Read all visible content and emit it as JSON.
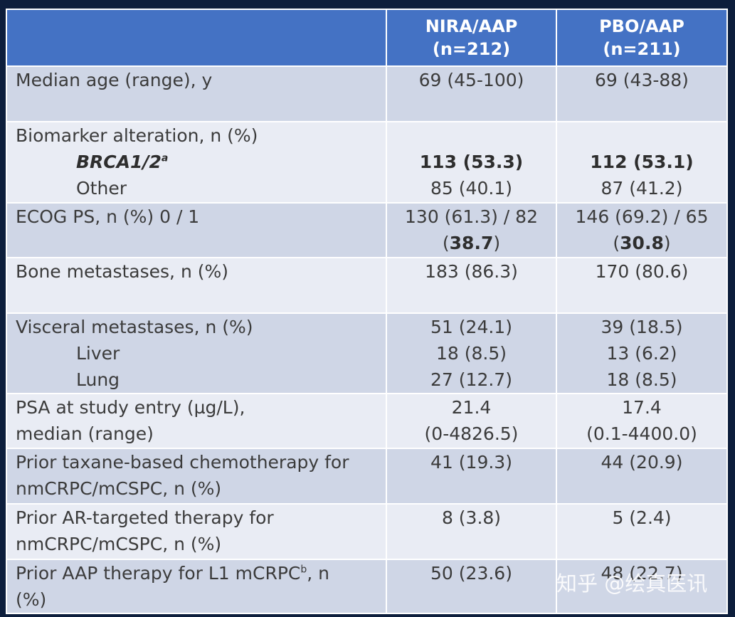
{
  "header": {
    "col1": "",
    "col2_line1": "NIRA/AAP",
    "col2_line2": "(n=212)",
    "col3_line1": "PBO/AAP",
    "col3_line2": "(n=211)"
  },
  "rows": {
    "age": {
      "label": "Median age (range), y",
      "nira": "69 (45-100)",
      "pbo": "69 (43-88)"
    },
    "biomarker": {
      "label": "Biomarker alteration, n (%)",
      "brca_label": "BRCA1/2",
      "brca_sup": "a",
      "brca_nira": "113 (53.3)",
      "brca_pbo": "112 (53.1)",
      "other_label": "Other",
      "other_nira": "85 (40.1)",
      "other_pbo": "87 (41.2)"
    },
    "ecog": {
      "label": "ECOG PS, n (%) 0 / 1",
      "nira_line1": "130 (61.3) / 82",
      "nira_line2_pre": "(",
      "nira_line2_bold": "38.7",
      "nira_line2_post": ")",
      "pbo_line1": "146 (69.2) / 65",
      "pbo_line2_pre": "(",
      "pbo_line2_bold": "30.8",
      "pbo_line2_post": ")"
    },
    "bone": {
      "label": "Bone metastases, n (%)",
      "nira": "183 (86.3)",
      "pbo": "170 (80.6)"
    },
    "visceral": {
      "label": "Visceral metastases, n (%)",
      "nira": "51 (24.1)",
      "pbo": "39 (18.5)",
      "liver_label": "Liver",
      "liver_nira": "18 (8.5)",
      "liver_pbo": "13 (6.2)",
      "lung_label": "Lung",
      "lung_nira": "27 (12.7)",
      "lung_pbo": "18 (8.5)"
    },
    "psa": {
      "label_line1": "PSA at study entry (µg/L),",
      "label_line2": "median (range)",
      "nira_line1": "21.4",
      "nira_line2": "(0-4826.5)",
      "pbo_line1": "17.4",
      "pbo_line2": "(0.1-4400.0)"
    },
    "taxane": {
      "label_line1": "Prior taxane-based chemotherapy for",
      "label_line2": "nmCRPC/mCSPC, n (%)",
      "nira": "41 (19.3)",
      "pbo": "44 (20.9)"
    },
    "ar": {
      "label_line1": "Prior AR-targeted therapy for",
      "label_line2": "nmCRPC/mCSPC, n (%)",
      "nira": "8 (3.8)",
      "pbo": "5 (2.4)"
    },
    "aap": {
      "label_line1_pre": "Prior AAP therapy for L1 mCRPC",
      "label_sup": "b",
      "label_line1_post": ", n",
      "label_line2": "(%)",
      "nira": "50 (23.6)",
      "pbo": "48 (22.7)"
    }
  },
  "watermark": "知乎 @绘真医讯",
  "colors": {
    "header_bg": "#4472c4",
    "row_dark": "#cfd6e6",
    "row_light": "#e9ecf4",
    "page_bg": "#0d1e3c"
  }
}
